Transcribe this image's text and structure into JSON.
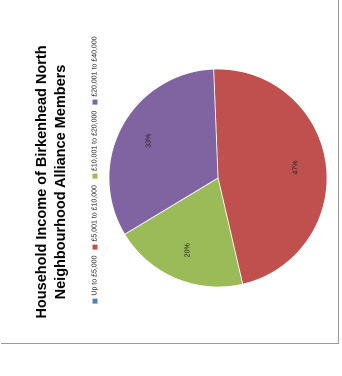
{
  "chart_data": {
    "type": "pie",
    "title_lines": [
      "Household Income of Birkenhead North",
      "Neighbourhood Alliance Members"
    ],
    "legend_position": "left",
    "slices": [
      {
        "label": "Up to £5,000",
        "value": 0,
        "color": "#4f81bd"
      },
      {
        "label": "£5,001 to £10,000",
        "value": 47,
        "color": "#c0504d",
        "data_label": "47%"
      },
      {
        "label": "£10,001 to £20,000",
        "value": 20,
        "color": "#9bbb59",
        "data_label": "20%"
      },
      {
        "label": "£20,001 to £40,000",
        "value": 33,
        "color": "#8064a2",
        "data_label": "33%"
      }
    ]
  }
}
